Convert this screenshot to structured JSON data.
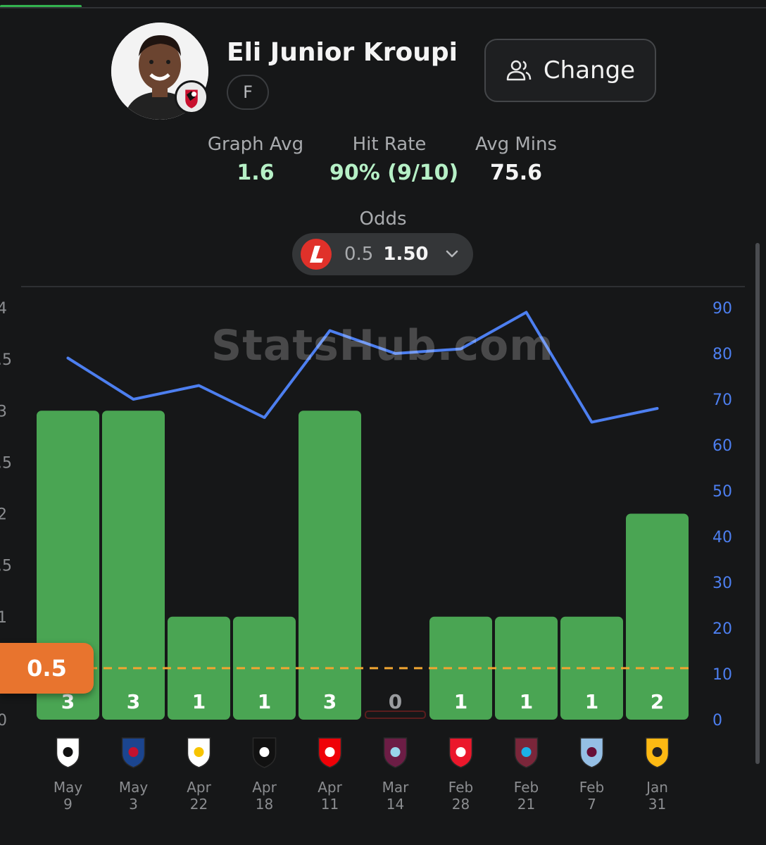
{
  "player": {
    "name": "Eli Junior Kroupi",
    "position": "F"
  },
  "change_button": {
    "label": "Change"
  },
  "stats": {
    "graph_avg": {
      "label": "Graph Avg",
      "value": "1.6"
    },
    "hit_rate": {
      "label": "Hit Rate",
      "value": "90% (9/10)"
    },
    "avg_mins": {
      "label": "Avg Mins",
      "value": "75.6"
    }
  },
  "odds": {
    "label": "Odds",
    "line": "0.5",
    "price": "1.50"
  },
  "watermark": "StatsHub.com",
  "colors": {
    "bar_hit": "#4aa553",
    "bar_miss": "#c0392b",
    "minutes_line": "#4d7ff0",
    "threshold_line": "#f0a531",
    "threshold_badge": "#e8742e",
    "right_axis": "#4d7ff0"
  },
  "chart_data": {
    "type": "bar",
    "categories": [
      "May 9",
      "May 3",
      "Apr 22",
      "Apr 18",
      "Apr 11",
      "Mar 14",
      "Feb 28",
      "Feb 21",
      "Feb 7",
      "Jan 31"
    ],
    "category_month": [
      "May",
      "May",
      "Apr",
      "Apr",
      "Apr",
      "Mar",
      "Feb",
      "Feb",
      "Feb",
      "Jan"
    ],
    "category_day": [
      "9",
      "3",
      "22",
      "18",
      "11",
      "14",
      "28",
      "21",
      "7",
      "31"
    ],
    "opponent_icons": [
      "fulham-icon",
      "crystal-palace-icon",
      "leeds-icon",
      "newcastle-icon",
      "arsenal-icon",
      "burnley-icon",
      "sunderland-icon",
      "west-ham-icon",
      "aston-villa-icon",
      "wolves-icon"
    ],
    "series": [
      {
        "values": [
          3,
          3,
          1,
          1,
          3,
          0,
          1,
          1,
          1,
          2
        ],
        "labels": [
          "3",
          "3",
          "1",
          "1",
          "3",
          "0",
          "1",
          "1",
          "1",
          "2"
        ]
      },
      {
        "axis": "right",
        "values": [
          79,
          70,
          73,
          66,
          85,
          80,
          81,
          89,
          65,
          68
        ]
      }
    ],
    "left_axis": {
      "ylim": [
        0,
        4
      ],
      "ticks": [
        "0",
        "1",
        "2",
        "3",
        "4"
      ],
      "visible_ticks": [
        "0",
        ".5",
        "1",
        ".5",
        "2",
        ".5",
        "3",
        ".5",
        "4"
      ]
    },
    "right_axis": {
      "ylim": [
        0,
        90
      ],
      "ticks": [
        "0",
        "10",
        "20",
        "30",
        "40",
        "50",
        "60",
        "70",
        "80",
        "90"
      ]
    },
    "threshold": {
      "value": 0.5,
      "label": "0.5"
    },
    "grid": false
  }
}
